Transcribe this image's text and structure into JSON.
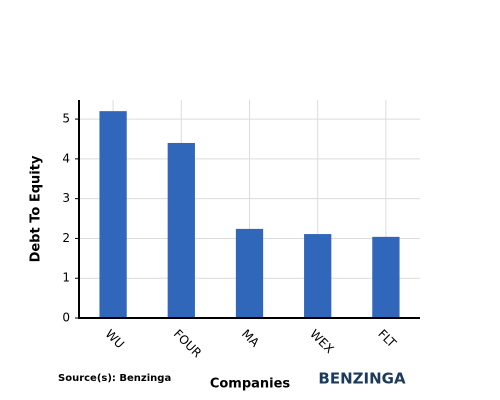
{
  "chart_data": {
    "type": "bar",
    "categories": [
      "WU",
      "FOUR",
      "MA",
      "WEX",
      "FLT"
    ],
    "values": [
      5.2,
      4.4,
      2.24,
      2.11,
      2.04
    ],
    "color": "#3067bb",
    "ylim": [
      0,
      5.48
    ],
    "yticks": [
      0,
      1,
      2,
      3,
      4,
      5
    ],
    "grid": true,
    "y_label": "Debt To Equity",
    "x_label": "Companies",
    "source": "Source(s): Benzinga",
    "brand": "BENZINGA"
  }
}
